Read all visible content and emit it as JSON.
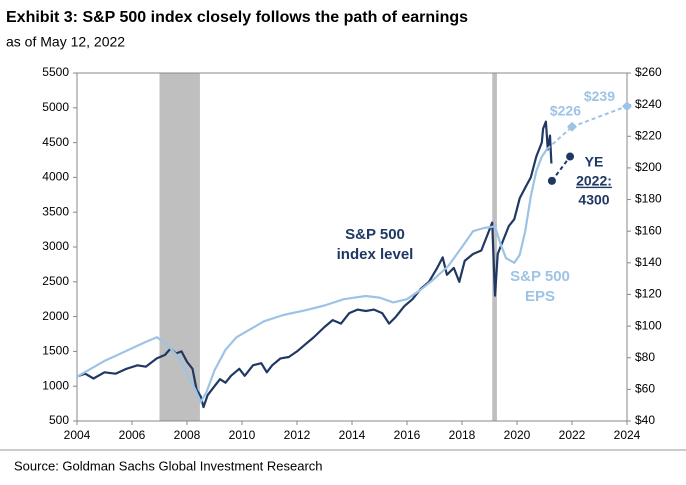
{
  "chart_data": {
    "type": "line",
    "title": "Exhibit 3: S&P 500 index closely follows the path of earnings",
    "subtitle": "as of May 12, 2022",
    "source": "Source: Goldman Sachs Global Investment Research",
    "xlim": [
      2004,
      2024
    ],
    "xticks": [
      2004,
      2006,
      2008,
      2010,
      2012,
      2014,
      2016,
      2018,
      2020,
      2022,
      2024
    ],
    "ylim": [
      500,
      5500
    ],
    "yticks": [
      500,
      1000,
      1500,
      2000,
      2500,
      3000,
      3500,
      4000,
      4500,
      5000,
      5500
    ],
    "y2lim": [
      40,
      260
    ],
    "y2ticks": [
      {
        "value": 40,
        "label": "$40"
      },
      {
        "value": 60,
        "label": "$60"
      },
      {
        "value": 80,
        "label": "$80"
      },
      {
        "value": 100,
        "label": "$100"
      },
      {
        "value": 120,
        "label": "$120"
      },
      {
        "value": 140,
        "label": "$140"
      },
      {
        "value": 160,
        "label": "$160"
      },
      {
        "value": 180,
        "label": "$180"
      },
      {
        "value": 200,
        "label": "$200"
      },
      {
        "value": 220,
        "label": "$220"
      },
      {
        "value": 240,
        "label": "$240"
      },
      {
        "value": 260,
        "label": "$260"
      }
    ],
    "shaded_spans": [
      [
        2007.0,
        2008.47
      ],
      [
        2019.1,
        2019.27
      ]
    ],
    "shade_color": "#bfbfbf",
    "series": [
      {
        "label": [
          "S&P 500",
          "index level"
        ],
        "color": "#1f3864",
        "x": [
          2004.0,
          2004.3,
          2004.6,
          2005.0,
          2005.4,
          2005.8,
          2006.2,
          2006.5,
          2006.9,
          2007.2,
          2007.4,
          2007.6,
          2007.8,
          2008.0,
          2008.2,
          2008.35,
          2008.5,
          2008.6,
          2008.75,
          2009.0,
          2009.2,
          2009.4,
          2009.6,
          2009.9,
          2010.1,
          2010.4,
          2010.7,
          2010.9,
          2011.1,
          2011.4,
          2011.7,
          2012.0,
          2012.3,
          2012.6,
          2013.0,
          2013.3,
          2013.6,
          2013.9,
          2014.2,
          2014.5,
          2014.8,
          2015.1,
          2015.35,
          2015.6,
          2015.9,
          2016.2,
          2016.5,
          2016.8,
          2017.1,
          2017.3,
          2017.45,
          2017.7,
          2017.9,
          2018.1,
          2018.4,
          2018.7,
          2019.0,
          2019.1,
          2019.2,
          2019.3,
          2019.5,
          2019.7,
          2019.9,
          2020.1,
          2020.3,
          2020.5,
          2020.7,
          2020.9,
          2020.95,
          2021.05,
          2021.12,
          2021.2,
          2021.25
        ],
        "values": [
          1140,
          1180,
          1110,
          1200,
          1180,
          1250,
          1300,
          1280,
          1400,
          1450,
          1540,
          1470,
          1500,
          1350,
          1250,
          950,
          850,
          700,
          870,
          1000,
          1100,
          1050,
          1150,
          1250,
          1150,
          1300,
          1330,
          1200,
          1300,
          1400,
          1420,
          1500,
          1600,
          1700,
          1850,
          1950,
          1900,
          2050,
          2100,
          2080,
          2100,
          2050,
          1900,
          2000,
          2150,
          2250,
          2400,
          2500,
          2700,
          2850,
          2600,
          2700,
          2500,
          2800,
          2900,
          2950,
          3250,
          3350,
          2300,
          2900,
          3100,
          3300,
          3400,
          3700,
          3850,
          4000,
          4300,
          4500,
          4700,
          4800,
          4400,
          4600,
          4200
        ]
      },
      {
        "label": [
          "S&P 500",
          "EPS"
        ],
        "color": "#9dc3e6",
        "axis": "y2",
        "x": [
          2004.0,
          2004.5,
          2005.0,
          2005.5,
          2006.0,
          2006.5,
          2006.9,
          2007.3,
          2007.7,
          2008.0,
          2008.3,
          2008.5,
          2008.7,
          2009.0,
          2009.4,
          2009.8,
          2010.3,
          2010.8,
          2011.5,
          2012.3,
          2013.0,
          2013.7,
          2014.5,
          2015.0,
          2015.5,
          2016.0,
          2016.5,
          2017.0,
          2017.5,
          2018.0,
          2018.4,
          2018.8,
          2019.2,
          2019.4,
          2019.6,
          2019.9,
          2020.1,
          2020.3,
          2020.5,
          2020.7,
          2020.9,
          2021.1
        ],
        "values": [
          68,
          73,
          78,
          82,
          86,
          90,
          93,
          88,
          80,
          70,
          60,
          52,
          58,
          72,
          85,
          93,
          98,
          103,
          107,
          110,
          113,
          117,
          119,
          118,
          115,
          117,
          123,
          130,
          138,
          150,
          160,
          162,
          163,
          152,
          143,
          140,
          145,
          160,
          182,
          198,
          207,
          212
        ]
      },
      {
        "color": "#1f3864",
        "dashed": true,
        "marker": "circle",
        "x": [
          2021.27,
          2021.93
        ],
        "values": [
          3950,
          4300
        ],
        "annotation": [
          "YE",
          "2022:",
          "4300"
        ]
      },
      {
        "color": "#9dc3e6",
        "dashed": true,
        "marker": "diamond",
        "axis": "y2",
        "x": [
          2022,
          2024
        ],
        "values": [
          226,
          239
        ],
        "value_labels": [
          "$226",
          "$239"
        ]
      }
    ]
  }
}
